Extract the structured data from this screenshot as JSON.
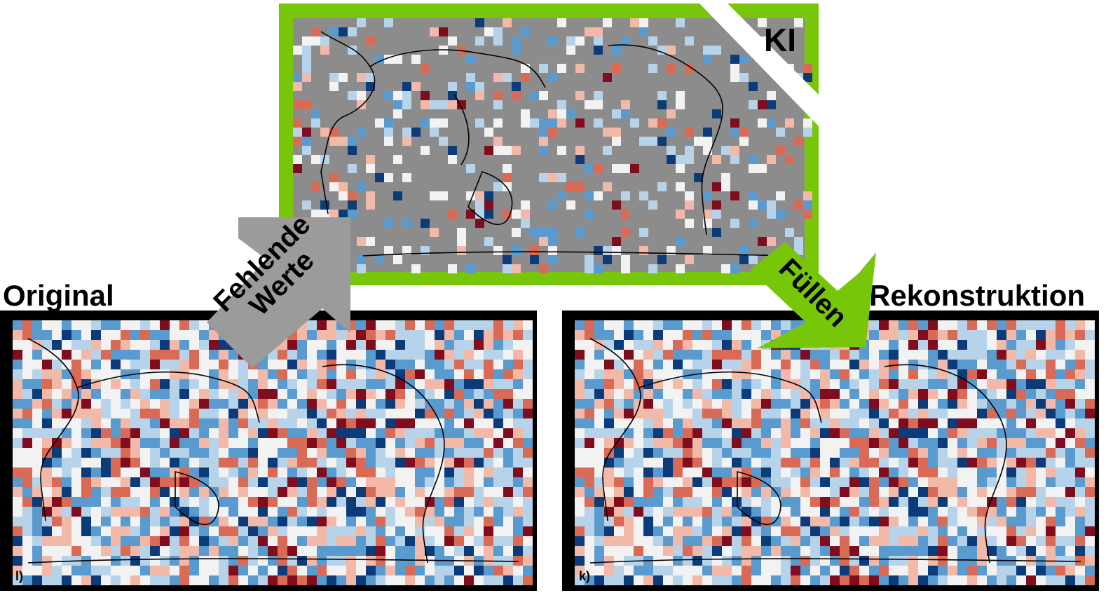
{
  "labels": {
    "original": "Original",
    "reconstruction": "Rekonstruktion",
    "ai": "KI",
    "panel_original_tag": "l)",
    "panel_reconstruction_tag": "k)"
  },
  "arrows": {
    "missing_line1": "Fehlende",
    "missing_line2": "Werte",
    "fill": "Füllen"
  },
  "colors": {
    "ai_frame": "#77c60a",
    "missing_arrow": "#9b9b9b",
    "missing_cell": "#8c8c8c",
    "panel_frame": "#000000",
    "warm_strong": "#7f0d1e",
    "warm": "#d96a55",
    "neutral": "#f2f2f2",
    "cold": "#5a9bcf",
    "cold_strong": "#0c3b7a"
  }
}
